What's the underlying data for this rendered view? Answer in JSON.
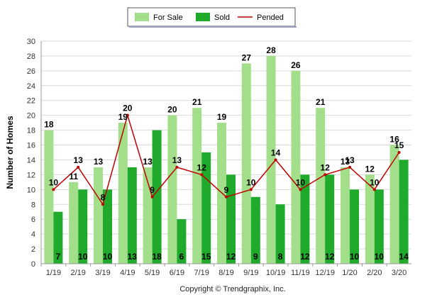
{
  "chart_data": {
    "type": "bar",
    "categories": [
      "1/19",
      "2/19",
      "3/19",
      "4/19",
      "5/19",
      "6/19",
      "7/19",
      "8/19",
      "9/19",
      "10/19",
      "11/19",
      "12/19",
      "1/20",
      "2/20",
      "3/20"
    ],
    "series": [
      {
        "name": "For Sale",
        "type": "bar",
        "color": "#a3df8b",
        "values": [
          18,
          11,
          13,
          19,
          13,
          20,
          21,
          19,
          27,
          28,
          26,
          21,
          13,
          12,
          16
        ]
      },
      {
        "name": "Sold",
        "type": "bar",
        "color": "#1faa2b",
        "values": [
          7,
          10,
          10,
          13,
          18,
          6,
          15,
          12,
          9,
          8,
          12,
          12,
          10,
          10,
          14
        ]
      },
      {
        "name": "Pended",
        "type": "line",
        "color": "#c00000",
        "values": [
          10,
          13,
          8,
          20,
          9,
          13,
          12,
          9,
          10,
          14,
          10,
          12,
          13,
          10,
          15
        ]
      }
    ],
    "ylabel": "Number of Homes",
    "xlabel": "",
    "ylim": [
      0,
      30
    ],
    "yticks": [
      0,
      2,
      4,
      6,
      8,
      10,
      12,
      14,
      16,
      18,
      20,
      22,
      24,
      26,
      28,
      30
    ],
    "grid": true,
    "legend_position": "top-center",
    "footer": "Copyright © Trendgraphix, Inc."
  }
}
